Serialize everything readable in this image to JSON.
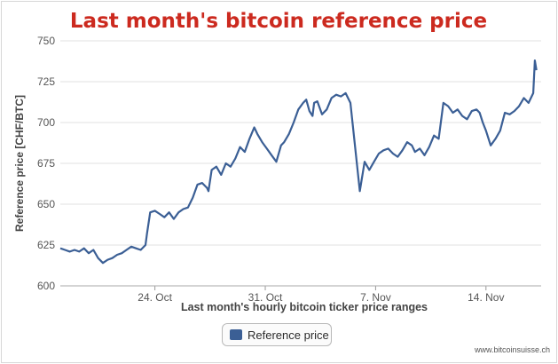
{
  "chart_data": {
    "type": "line",
    "title": "Last month's bitcoin reference price",
    "xlabel": "Last month's hourly bitcoin ticker price ranges",
    "ylabel": "Reference price [CHF/BTC]",
    "ylim": [
      600,
      750
    ],
    "yticks": [
      600,
      625,
      650,
      675,
      700,
      725,
      750
    ],
    "xlim": [
      0,
      30.5
    ],
    "xticks": [
      {
        "pos": 6,
        "label": "24. Oct"
      },
      {
        "pos": 13,
        "label": "31. Oct"
      },
      {
        "pos": 20,
        "label": "7. Nov"
      },
      {
        "pos": 27,
        "label": "14. Nov"
      }
    ],
    "grid": true,
    "legend_position": "bottom-center",
    "series": [
      {
        "name": "Reference price",
        "color": "#3b5f95",
        "x": [
          0,
          0.3,
          0.6,
          0.9,
          1.2,
          1.5,
          1.8,
          2.1,
          2.4,
          2.7,
          3.0,
          3.3,
          3.6,
          3.9,
          4.2,
          4.5,
          4.8,
          5.1,
          5.4,
          5.5,
          5.7,
          6.0,
          6.3,
          6.6,
          6.9,
          7.2,
          7.5,
          7.8,
          8.1,
          8.4,
          8.7,
          9.0,
          9.3,
          9.4,
          9.6,
          9.9,
          10.2,
          10.5,
          10.8,
          11.1,
          11.4,
          11.7,
          12.0,
          12.3,
          12.5,
          12.8,
          13.1,
          13.4,
          13.7,
          14.0,
          14.2,
          14.5,
          14.8,
          15.1,
          15.4,
          15.6,
          15.8,
          16.0,
          16.1,
          16.3,
          16.6,
          16.9,
          17.2,
          17.5,
          17.8,
          18.1,
          18.4,
          18.7,
          19.0,
          19.3,
          19.6,
          19.9,
          20.2,
          20.5,
          20.8,
          21.1,
          21.4,
          21.7,
          22.0,
          22.3,
          22.5,
          22.8,
          23.1,
          23.4,
          23.7,
          24.0,
          24.3,
          24.6,
          24.9,
          25.2,
          25.5,
          25.8,
          26.1,
          26.4,
          26.6,
          26.8,
          27.0,
          27.3,
          27.6,
          27.9,
          28.2,
          28.5,
          28.8,
          29.1,
          29.4,
          29.7,
          29.9,
          30.0,
          30.1,
          30.2
        ],
        "values": [
          623,
          622,
          621,
          622,
          621,
          623,
          620,
          622,
          617,
          614,
          616,
          617,
          619,
          620,
          622,
          624,
          623,
          622,
          625,
          632,
          645,
          646,
          644,
          642,
          645,
          641,
          645,
          647,
          648,
          654,
          662,
          663,
          660,
          658,
          671,
          673,
          668,
          675,
          673,
          678,
          685,
          682,
          690,
          697,
          693,
          688,
          684,
          680,
          676,
          686,
          688,
          693,
          700,
          708,
          712,
          714,
          707,
          704,
          712,
          713,
          705,
          708,
          715,
          717,
          716,
          718,
          712,
          685,
          658,
          676,
          671,
          676,
          681,
          683,
          684,
          681,
          679,
          683,
          688,
          686,
          682,
          684,
          680,
          685,
          692,
          690,
          712,
          710,
          706,
          708,
          704,
          702,
          707,
          708,
          706,
          700,
          695,
          686,
          690,
          695,
          706,
          705,
          707,
          710,
          715,
          712,
          716,
          718,
          738,
          732
        ]
      }
    ]
  },
  "legend": {
    "label": "Reference price"
  },
  "credit": "www.bitcoinsuisse.ch"
}
